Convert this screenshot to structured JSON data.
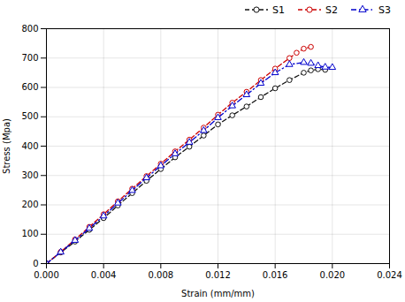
{
  "chart_data": {
    "type": "line",
    "xlabel": "Strain (mm/mm)",
    "ylabel": "Stress (Mpa)",
    "xlim": [
      0.0,
      0.024
    ],
    "ylim": [
      0,
      800
    ],
    "xticks": [
      {
        "value": 0.0,
        "label": "0.000"
      },
      0.004,
      0.008,
      0.012,
      0.016,
      {
        "value": 0.02,
        "label": "0.020"
      },
      0.024
    ],
    "yticks": [
      0,
      100,
      200,
      300,
      400,
      500,
      600,
      700,
      800
    ],
    "grid": true,
    "legend": "upper right",
    "series": [
      {
        "name": "S1",
        "color": "#111111",
        "line_style": "dashed",
        "marker": "circle",
        "x": [
          0.0,
          0.001,
          0.002,
          0.003,
          0.004,
          0.005,
          0.006,
          0.007,
          0.008,
          0.009,
          0.01,
          0.011,
          0.012,
          0.013,
          0.014,
          0.015,
          0.016,
          0.017,
          0.018,
          0.0185,
          0.019,
          0.0195
        ],
        "values": [
          0,
          38,
          75,
          115,
          155,
          198,
          240,
          282,
          322,
          362,
          398,
          436,
          474,
          505,
          535,
          567,
          597,
          625,
          650,
          658,
          662,
          660
        ]
      },
      {
        "name": "S2",
        "color": "#cc0000",
        "line_style": "dashed",
        "marker": "circle",
        "x": [
          0.0,
          0.001,
          0.002,
          0.003,
          0.004,
          0.005,
          0.006,
          0.007,
          0.008,
          0.009,
          0.01,
          0.011,
          0.012,
          0.013,
          0.014,
          0.015,
          0.016,
          0.017,
          0.0175,
          0.018,
          0.0185
        ],
        "values": [
          0,
          40,
          82,
          125,
          168,
          212,
          255,
          298,
          340,
          382,
          422,
          463,
          507,
          548,
          585,
          625,
          664,
          700,
          718,
          732,
          738
        ]
      },
      {
        "name": "S3",
        "color": "#0000cc",
        "line_style": "dashdot",
        "marker": "triangle",
        "x": [
          0.0,
          0.001,
          0.002,
          0.003,
          0.004,
          0.005,
          0.006,
          0.007,
          0.008,
          0.009,
          0.01,
          0.011,
          0.012,
          0.013,
          0.014,
          0.015,
          0.016,
          0.017,
          0.018,
          0.0185,
          0.019,
          0.0195,
          0.02
        ],
        "values": [
          0,
          39,
          79,
          120,
          162,
          206,
          249,
          292,
          333,
          374,
          413,
          453,
          497,
          537,
          575,
          614,
          650,
          678,
          685,
          682,
          674,
          669,
          668
        ]
      }
    ]
  }
}
